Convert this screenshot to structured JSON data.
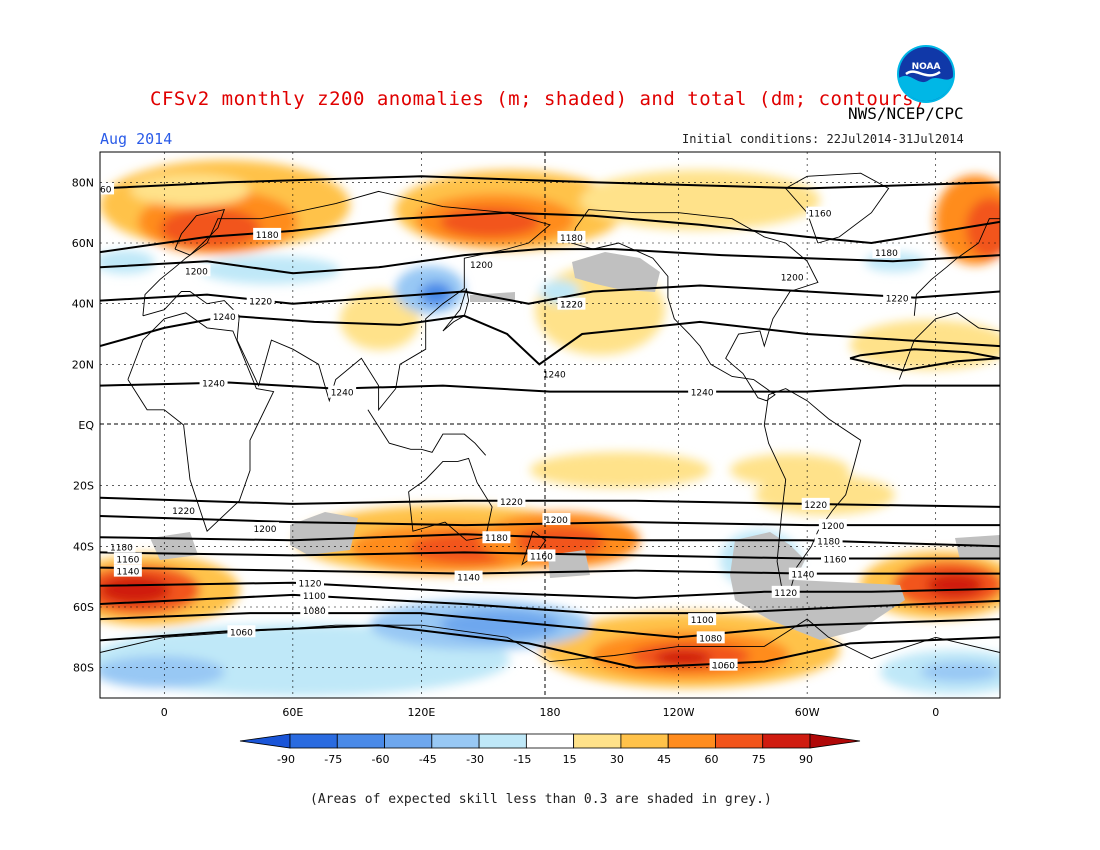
{
  "title": "CFSv2 monthly z200 anomalies (m; shaded) and total (dm; contours)",
  "agency": "NWS/NCEP/CPC",
  "logo_text": "NOAA",
  "month": "Aug 2014",
  "initial_conditions": "Initial conditions: 22Jul2014-31Jul2014",
  "note": "(Areas of expected skill less than 0.3 are shaded in grey.)",
  "map": {
    "lat_labels": [
      "80N",
      "60N",
      "40N",
      "20N",
      "EQ",
      "20S",
      "40S",
      "60S",
      "80S"
    ],
    "lon_labels": [
      "0",
      "60E",
      "120E",
      "180",
      "120W",
      "60W",
      "0"
    ],
    "contour_labels": [
      "1060",
      "1080",
      "1100",
      "1120",
      "1140",
      "1160",
      "1180",
      "1200",
      "1220",
      "1240"
    ],
    "contours": [
      {
        "label": "1160",
        "anchor": [
          -30,
          78
        ]
      },
      {
        "label": "1180",
        "anchor": [
          48,
          63
        ]
      },
      {
        "label": "1200",
        "anchor": [
          15,
          51
        ]
      },
      {
        "label": "1220",
        "anchor": [
          45,
          41
        ]
      },
      {
        "label": "1240",
        "anchor": [
          28,
          36
        ]
      },
      {
        "label": "1240",
        "anchor": [
          23,
          14
        ]
      },
      {
        "label": "1240",
        "anchor": [
          83,
          11
        ]
      },
      {
        "label": "1200",
        "anchor": [
          148,
          53
        ]
      },
      {
        "label": "1180",
        "anchor": [
          190,
          62
        ]
      },
      {
        "label": "1220",
        "anchor": [
          190,
          40
        ]
      },
      {
        "label": "1240",
        "anchor": [
          182,
          17
        ]
      },
      {
        "label": "1240",
        "anchor": [
          251,
          11
        ]
      },
      {
        "label": "1160",
        "anchor": [
          306,
          70
        ]
      },
      {
        "label": "1180",
        "anchor": [
          337,
          57
        ]
      },
      {
        "label": "1200",
        "anchor": [
          293,
          49
        ]
      },
      {
        "label": "1220",
        "anchor": [
          342,
          42
        ]
      },
      {
        "label": "1220",
        "anchor": [
          9,
          -28
        ]
      },
      {
        "label": "1200",
        "anchor": [
          47,
          -34
        ]
      },
      {
        "label": "1180",
        "anchor": [
          -20,
          -40
        ]
      },
      {
        "label": "1160",
        "anchor": [
          -17,
          -44
        ]
      },
      {
        "label": "1140",
        "anchor": [
          -17,
          -48
        ]
      },
      {
        "label": "1120",
        "anchor": [
          68,
          -52
        ]
      },
      {
        "label": "1100",
        "anchor": [
          70,
          -56
        ]
      },
      {
        "label": "1080",
        "anchor": [
          70,
          -61
        ]
      },
      {
        "label": "1060",
        "anchor": [
          36,
          -68
        ]
      },
      {
        "label": "1220",
        "anchor": [
          162,
          -25
        ]
      },
      {
        "label": "1200",
        "anchor": [
          183,
          -31
        ]
      },
      {
        "label": "1180",
        "anchor": [
          155,
          -37
        ]
      },
      {
        "label": "1160",
        "anchor": [
          176,
          -43
        ]
      },
      {
        "label": "1140",
        "anchor": [
          142,
          -50
        ]
      },
      {
        "label": "1100",
        "anchor": [
          251,
          -64
        ]
      },
      {
        "label": "1080",
        "anchor": [
          255,
          -70
        ]
      },
      {
        "label": "1060",
        "anchor": [
          261,
          -79
        ]
      },
      {
        "label": "1220",
        "anchor": [
          304,
          -26
        ]
      },
      {
        "label": "1200",
        "anchor": [
          312,
          -33
        ]
      },
      {
        "label": "1180",
        "anchor": [
          310,
          -38
        ]
      },
      {
        "label": "1160",
        "anchor": [
          313,
          -44
        ]
      },
      {
        "label": "1140",
        "anchor": [
          298,
          -49
        ]
      },
      {
        "label": "1120",
        "anchor": [
          290,
          -55
        ]
      }
    ]
  },
  "colorbar": {
    "ticks": [
      "-90",
      "-75",
      "-60",
      "-45",
      "-30",
      "-15",
      "15",
      "30",
      "45",
      "60",
      "75",
      "90"
    ],
    "colors": [
      "#2a6be0",
      "#4a8ae8",
      "#6ea7ee",
      "#98c8f4",
      "#bfe8f8",
      "#ffffff",
      "#ffe28a",
      "#ffc24a",
      "#ff8c1e",
      "#f2541a",
      "#d01c10"
    ],
    "under_color": "#1a55d8",
    "over_color": "#b00808"
  },
  "skill_mask_color": "#c0c0c0"
}
